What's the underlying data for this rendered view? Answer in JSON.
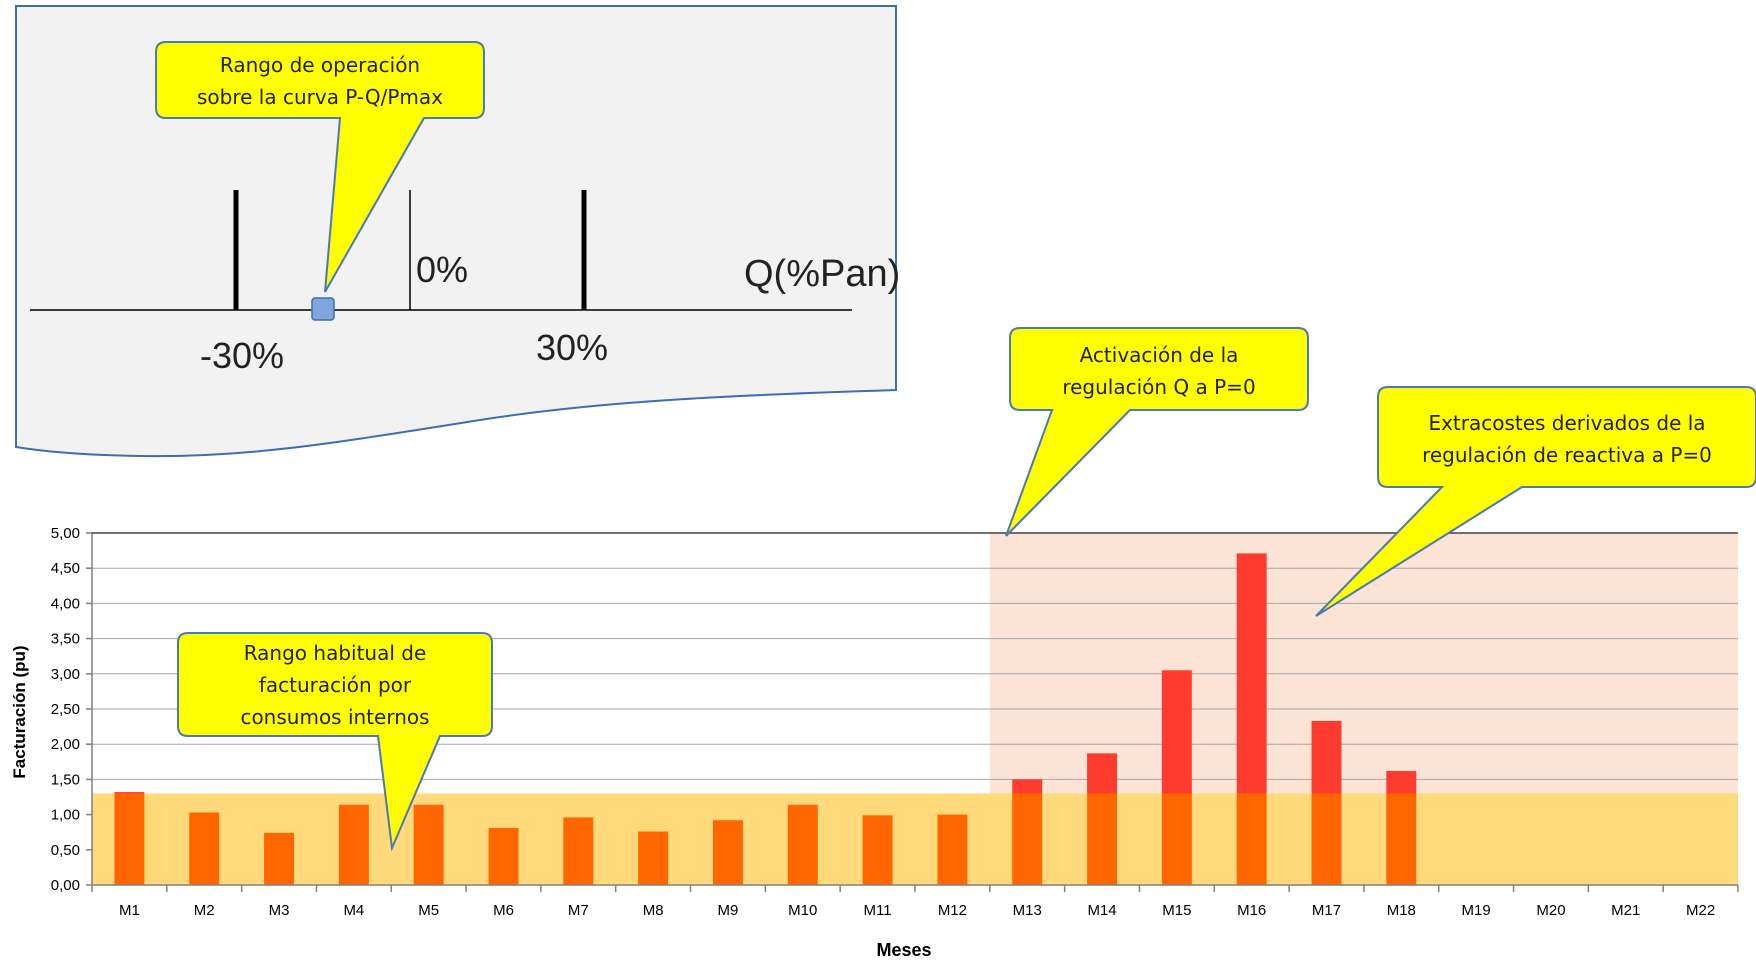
{
  "inset": {
    "label_neg": "-30%",
    "label_zero": "0%",
    "label_pos": "30%",
    "axis_label": "Q(%Pan)"
  },
  "callouts": {
    "operating_range": [
      "Rango de operación",
      "sobre la curva P-Q/Pmax"
    ],
    "activation": [
      "Activación de la",
      "regulación  Q a P=0"
    ],
    "extra_costs": [
      "Extracostes derivados de la",
      "regulación de reactiva a P=0"
    ],
    "usual_range": [
      "Rango habitual de",
      "facturación por",
      "consumos internos"
    ]
  },
  "colors": {
    "bar_base": "#ff6600",
    "bar_excess": "#ff3b30",
    "usual_band": "#ffd97a",
    "activation_region": "#fbe3d6",
    "callout_fill": "#ffff00",
    "callout_border": "#4a79b5",
    "inset_fill": "#f2f2f2",
    "inset_border": "#3d6db5",
    "gridline": "#a6a6a6"
  },
  "chart_data": {
    "type": "bar",
    "title": "",
    "xlabel": "Meses",
    "ylabel": "Facturación (pu)",
    "ylim": [
      0,
      5
    ],
    "yticks": [
      "0,00",
      "0,50",
      "1,00",
      "1,50",
      "2,00",
      "2,50",
      "3,00",
      "3,50",
      "4,00",
      "4,50",
      "5,00"
    ],
    "categories": [
      "M1",
      "M2",
      "M3",
      "M4",
      "M5",
      "M6",
      "M7",
      "M8",
      "M9",
      "M10",
      "M11",
      "M12",
      "M13",
      "M14",
      "M15",
      "M16",
      "M17",
      "M18",
      "M19",
      "M20",
      "M21",
      "M22"
    ],
    "values": [
      1.32,
      1.03,
      0.74,
      1.14,
      1.14,
      0.81,
      0.96,
      0.76,
      0.92,
      1.14,
      0.99,
      1.0,
      1.5,
      1.87,
      3.05,
      4.71,
      2.33,
      1.62,
      null,
      null,
      null,
      null
    ],
    "usual_band_max": 1.3,
    "activation_start_category": "M13",
    "grid": true,
    "legend": "none"
  }
}
